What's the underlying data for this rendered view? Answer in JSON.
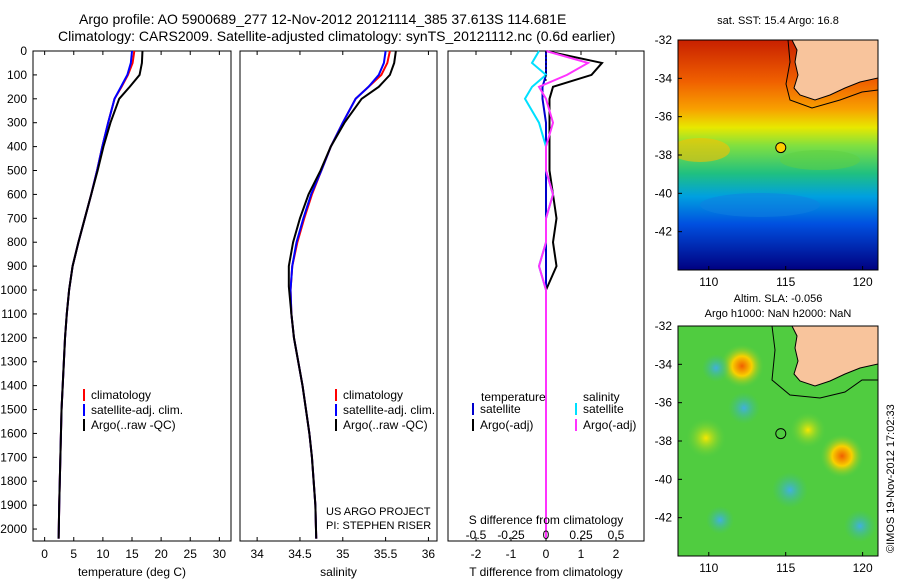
{
  "header": {
    "title_line1": "Argo profile: AO 5900689_277 12-Nov-2012 20121114_385 37.613S 114.681E",
    "title_line2": "Climatology: CARS2009. Satellite-adjusted climatology: synTS_20121112.nc (0.6d earlier)"
  },
  "footer": {
    "project_line1": "US ARGO PROJECT",
    "project_line2": "PI: STEPHEN RISER",
    "stamp": "©IMOS 19-Nov-2012 17:02:33"
  },
  "chart_data": [
    {
      "type": "line",
      "panel": "temperature",
      "xlabel": "temperature (deg C)",
      "ylabel": "",
      "xlim": [
        -2,
        32
      ],
      "ylim": [
        2050,
        0
      ],
      "xticks": [
        0,
        5,
        10,
        15,
        20,
        25,
        30
      ],
      "yticks": [
        0,
        100,
        200,
        300,
        400,
        500,
        600,
        700,
        800,
        900,
        1000,
        1100,
        1200,
        1300,
        1400,
        1500,
        1600,
        1700,
        1800,
        1900,
        2000
      ],
      "legend": [
        "climatology",
        "satellite-adj. clim.",
        "Argo(..raw -QC)"
      ],
      "legend_placement": "lower-right",
      "series": [
        {
          "name": "climatology",
          "color": "#ff0000",
          "x": [
            15.4,
            15.1,
            14.3,
            13.2,
            12.0,
            10.9,
            9.9,
            9.0,
            8.0,
            6.9,
            5.8,
            4.8,
            4.2,
            3.8,
            3.5,
            3.3,
            3.1,
            2.9,
            2.8,
            2.7,
            2.6,
            2.5,
            2.4
          ],
          "y": [
            0,
            50,
            100,
            150,
            200,
            300,
            400,
            500,
            600,
            700,
            800,
            900,
            1000,
            1100,
            1200,
            1300,
            1400,
            1500,
            1600,
            1700,
            1800,
            1900,
            2040
          ]
        },
        {
          "name": "satellite-adj. clim.",
          "color": "#0000ff",
          "x": [
            15.0,
            14.8,
            14.2,
            13.1,
            12.0,
            10.9,
            9.9,
            9.0,
            8.0,
            6.9,
            5.8,
            4.8,
            4.2,
            3.8,
            3.5,
            3.3,
            3.1,
            2.9,
            2.8,
            2.7,
            2.6,
            2.5,
            2.4
          ],
          "y": [
            0,
            50,
            100,
            150,
            200,
            300,
            400,
            500,
            600,
            700,
            800,
            900,
            1000,
            1100,
            1200,
            1300,
            1400,
            1500,
            1600,
            1700,
            1800,
            1900,
            2040
          ]
        },
        {
          "name": "Argo(..raw -QC)",
          "color": "#000000",
          "x": [
            16.8,
            16.7,
            16.3,
            14.6,
            12.8,
            11.3,
            10.1,
            9.1,
            8.0,
            6.9,
            5.8,
            4.8,
            4.2,
            3.8,
            3.5,
            3.3,
            3.1,
            2.9,
            2.8,
            2.7,
            2.6,
            2.5,
            2.4
          ],
          "y": [
            0,
            50,
            100,
            150,
            200,
            300,
            400,
            500,
            600,
            700,
            800,
            900,
            1000,
            1100,
            1200,
            1300,
            1400,
            1500,
            1600,
            1700,
            1800,
            1900,
            2040
          ]
        }
      ]
    },
    {
      "type": "line",
      "panel": "salinity",
      "xlabel": "salinity",
      "xlim": [
        33.8,
        36.1
      ],
      "ylim": [
        2050,
        0
      ],
      "xticks": [
        34,
        34.5,
        35,
        35.5,
        36
      ],
      "xtick_labels": [
        "34",
        "34.5",
        "35",
        "35.5",
        "36"
      ],
      "legend": [
        "climatology",
        "satellite-adj. clim.",
        "Argo(..raw -QC)"
      ],
      "legend_placement": "lower-right",
      "series": [
        {
          "name": "climatology",
          "color": "#ff0000",
          "x": [
            35.55,
            35.52,
            35.45,
            35.3,
            35.15,
            35.0,
            34.86,
            34.75,
            34.64,
            34.55,
            34.47,
            34.41,
            34.39,
            34.4,
            34.43,
            34.48,
            34.53,
            34.57,
            34.61,
            34.64,
            34.66,
            34.68,
            34.69
          ],
          "y": [
            0,
            50,
            100,
            150,
            200,
            300,
            400,
            500,
            600,
            700,
            800,
            900,
            1000,
            1100,
            1200,
            1300,
            1400,
            1500,
            1600,
            1700,
            1800,
            1900,
            2040
          ]
        },
        {
          "name": "satellite-adj. clim.",
          "color": "#0000ff",
          "x": [
            35.5,
            35.48,
            35.42,
            35.3,
            35.15,
            35.0,
            34.86,
            34.75,
            34.63,
            34.54,
            34.46,
            34.41,
            34.39,
            34.4,
            34.43,
            34.48,
            34.53,
            34.57,
            34.61,
            34.64,
            34.66,
            34.68,
            34.69
          ],
          "y": [
            0,
            50,
            100,
            150,
            200,
            300,
            400,
            500,
            600,
            700,
            800,
            900,
            1000,
            1100,
            1200,
            1300,
            1400,
            1500,
            1600,
            1700,
            1800,
            1900,
            2040
          ]
        },
        {
          "name": "Argo(..raw -QC)",
          "color": "#000000",
          "x": [
            35.62,
            35.6,
            35.55,
            35.42,
            35.22,
            35.02,
            34.86,
            34.74,
            34.6,
            34.5,
            34.42,
            34.37,
            34.37,
            34.4,
            34.43,
            34.48,
            34.53,
            34.57,
            34.61,
            34.64,
            34.66,
            34.68,
            34.69
          ],
          "y": [
            0,
            50,
            100,
            150,
            200,
            300,
            400,
            500,
            600,
            700,
            800,
            900,
            985,
            1100,
            1200,
            1300,
            1400,
            1500,
            1600,
            1700,
            1800,
            1900,
            2040
          ]
        }
      ]
    },
    {
      "type": "line",
      "panel": "difference",
      "xlabel": "T difference from climatology",
      "xlabel_top": "S difference from climatology",
      "xlim": [
        -2.8,
        2.8
      ],
      "ylim": [
        2050,
        0
      ],
      "xticks": [
        -2,
        -1,
        0,
        1,
        2
      ],
      "s_ticks": [
        -0.5,
        -0.25,
        0,
        0.25,
        0.5
      ],
      "s_tick_labels": [
        "-0.5",
        "-0.25",
        "0",
        "0.25",
        "0.5"
      ],
      "legend_left_title": "temperature",
      "legend_right_title": "salinity",
      "legend": [
        "satellite",
        "Argo(-adj)",
        "satellite",
        "Argo(-adj)"
      ],
      "legend_placement": "lower-center",
      "series": [
        {
          "name": "satellite",
          "group": "temperature",
          "color": "#0000cc",
          "x": [
            0.0,
            0.0,
            0.0,
            -0.1,
            -0.1,
            0.0,
            0.0,
            0.0,
            0.0,
            0.0,
            0.0,
            0.0,
            0.0,
            0.0,
            0.0,
            0.0,
            0.0,
            0.0,
            0.0,
            0.0
          ],
          "y": [
            0,
            50,
            100,
            150,
            200,
            300,
            400,
            500,
            600,
            700,
            800,
            900,
            1000,
            1200,
            1400,
            1600,
            1700,
            1800,
            1900,
            2040
          ]
        },
        {
          "name": "Argo(-adj)",
          "group": "temperature",
          "color": "#000000",
          "x": [
            0.0,
            1.6,
            1.3,
            0.2,
            0.1,
            0.1,
            0.1,
            0.1,
            0.2,
            0.3,
            0.2,
            0.3,
            0.0,
            0.0,
            0.0,
            0.0,
            0.0,
            0.0,
            0.0,
            0.0
          ],
          "y": [
            0,
            50,
            100,
            150,
            200,
            300,
            400,
            500,
            600,
            700,
            800,
            900,
            1000,
            1200,
            1400,
            1600,
            1700,
            1800,
            1900,
            2040
          ]
        },
        {
          "name": "satellite",
          "group": "salinity",
          "color": "#00e0ff",
          "x": [
            -0.05,
            -0.1,
            0.0,
            -0.1,
            -0.15,
            -0.05,
            0.0,
            0.0,
            0.05,
            0.0,
            0.0,
            -0.05,
            0.0,
            0.0,
            0.0,
            0.0,
            0.0,
            0.0,
            0.0,
            0.0
          ],
          "y": [
            0,
            50,
            100,
            150,
            200,
            300,
            400,
            500,
            600,
            700,
            800,
            900,
            1000,
            1200,
            1400,
            1600,
            1700,
            1800,
            1900,
            2040
          ]
        },
        {
          "name": "Argo(-adj)",
          "group": "salinity",
          "color": "#ff33ff",
          "x": [
            0.0,
            0.3,
            0.15,
            -0.05,
            0.0,
            0.05,
            0.0,
            0.0,
            0.05,
            0.0,
            0.0,
            -0.05,
            0.0,
            0.0,
            0.0,
            0.0,
            0.0,
            0.0,
            0.0,
            0.0
          ],
          "y": [
            0,
            50,
            100,
            150,
            200,
            300,
            400,
            500,
            600,
            700,
            800,
            900,
            1000,
            1200,
            1400,
            1600,
            1700,
            1800,
            1900,
            2040
          ]
        }
      ]
    },
    {
      "type": "heatmap",
      "panel": "sst_map",
      "title": "sat. SST: 15.4  Argo: 16.8",
      "xlim": [
        108,
        121
      ],
      "ylim": [
        -44,
        -32
      ],
      "xticks": [
        110,
        115,
        120
      ],
      "yticks": [
        -32,
        -34,
        -36,
        -38,
        -40,
        -42
      ],
      "marker": {
        "lon": 114.681,
        "lat": -37.613,
        "fill": "#ffcc00"
      },
      "colors": {
        "land": "#f8c49c"
      }
    },
    {
      "type": "heatmap",
      "panel": "sla_map",
      "title_line1": "Altim. SLA: -0.056",
      "title_line2": "Argo h1000: NaN h2000: NaN",
      "xlim": [
        108,
        121
      ],
      "ylim": [
        -44,
        -32
      ],
      "xticks": [
        110,
        115,
        120
      ],
      "yticks": [
        -32,
        -34,
        -36,
        -38,
        -40,
        -42
      ],
      "marker": {
        "lon": 114.681,
        "lat": -37.613,
        "fill": "none"
      },
      "colors": {
        "land": "#f8c49c"
      }
    }
  ]
}
